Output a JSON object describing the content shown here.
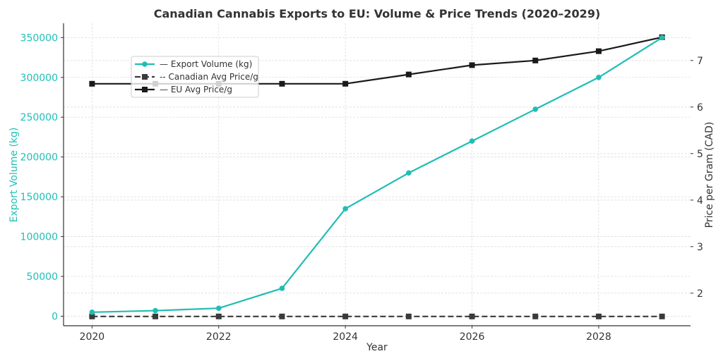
{
  "chart_data": {
    "type": "line",
    "title": "Canadian Cannabis Exports to EU: Volume & Price Trends (2020–2029)",
    "xlabel": "Year",
    "ylabel_left": "Export Volume (kg)",
    "ylabel_right": "Price per Gram (CAD)",
    "x": [
      2020,
      2021,
      2022,
      2023,
      2024,
      2025,
      2026,
      2027,
      2028,
      2029
    ],
    "x_ticks": [
      2020,
      2022,
      2024,
      2026,
      2028
    ],
    "ylim_left": [
      -12000,
      368000
    ],
    "yticks_left": [
      0,
      50000,
      100000,
      150000,
      200000,
      250000,
      300000,
      350000
    ],
    "ylim_right": [
      1.3,
      7.8
    ],
    "yticks_right": [
      2,
      3,
      4,
      5,
      6,
      7
    ],
    "grid": true,
    "legend_position": "upper-left",
    "series": [
      {
        "name": "— Export Volume (kg)",
        "axis": "left",
        "color": "#20bdb5",
        "marker": "circle",
        "linestyle": "solid",
        "values": [
          5000,
          7000,
          10000,
          35000,
          135000,
          180000,
          220000,
          260000,
          300000,
          350000
        ]
      },
      {
        "name": "-- Canadian Avg Price/g",
        "axis": "right",
        "color": "#3a3a3a",
        "marker": "square",
        "linestyle": "dashed",
        "values": [
          1.5,
          1.5,
          1.5,
          1.5,
          1.5,
          1.5,
          1.5,
          1.5,
          1.5,
          1.5
        ]
      },
      {
        "name": "— EU Avg Price/g",
        "axis": "right",
        "color": "#1a1a1a",
        "marker": "square",
        "linestyle": "solid",
        "values": [
          6.5,
          6.5,
          6.5,
          6.5,
          6.5,
          6.7,
          6.9,
          7.0,
          7.2,
          7.5
        ]
      }
    ]
  }
}
